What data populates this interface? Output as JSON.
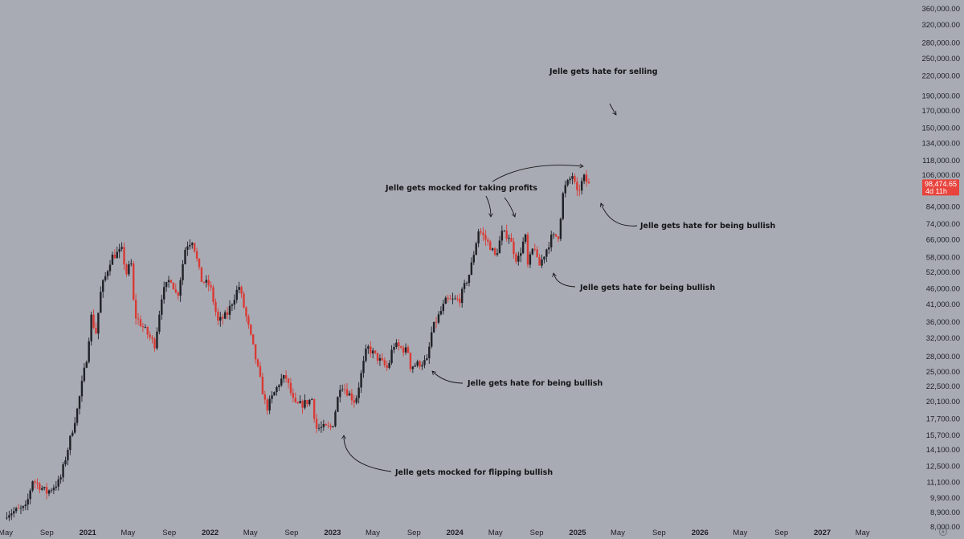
{
  "chart_data": {
    "type": "candlestick",
    "y_scale": "log",
    "ylim": [
      7900,
      370000
    ],
    "xlim": [
      "2020-05-01",
      "2027-07-15"
    ],
    "y_ticks": [
      "360,000.00",
      "320,000.00",
      "280,000.00",
      "250,000.00",
      "220,000.00",
      "190,000.00",
      "170,000.00",
      "150,000.00",
      "134,000.00",
      "118,000.00",
      "106,000.00",
      "84,000.00",
      "74,000.00",
      "66,000.00",
      "58,000.00",
      "52,000.00",
      "46,000.00",
      "41,000.00",
      "36,000.00",
      "32,000.00",
      "28,000.00",
      "25,000.00",
      "22,500.00",
      "20,100.00",
      "17,700.00",
      "15,700.00",
      "14,100.00",
      "12,500.00",
      "11,100.00",
      "9,900.00",
      "8,900.00",
      "8,000.00"
    ],
    "x_ticks": [
      {
        "label": "May",
        "date": "2020-05-01",
        "bold": false
      },
      {
        "label": "Sep",
        "date": "2020-09-01",
        "bold": false
      },
      {
        "label": "2021",
        "date": "2021-01-01",
        "bold": true
      },
      {
        "label": "May",
        "date": "2021-05-01",
        "bold": false
      },
      {
        "label": "Sep",
        "date": "2021-09-01",
        "bold": false
      },
      {
        "label": "2022",
        "date": "2022-01-01",
        "bold": true
      },
      {
        "label": "May",
        "date": "2022-05-01",
        "bold": false
      },
      {
        "label": "Sep",
        "date": "2022-09-01",
        "bold": false
      },
      {
        "label": "2023",
        "date": "2023-01-01",
        "bold": true
      },
      {
        "label": "May",
        "date": "2023-05-01",
        "bold": false
      },
      {
        "label": "Sep",
        "date": "2023-09-01",
        "bold": false
      },
      {
        "label": "2024",
        "date": "2024-01-01",
        "bold": true
      },
      {
        "label": "May",
        "date": "2024-05-01",
        "bold": false
      },
      {
        "label": "Sep",
        "date": "2024-09-01",
        "bold": false
      },
      {
        "label": "2025",
        "date": "2025-01-01",
        "bold": true
      },
      {
        "label": "May",
        "date": "2025-05-01",
        "bold": false
      },
      {
        "label": "Sep",
        "date": "2025-09-01",
        "bold": false
      },
      {
        "label": "2026",
        "date": "2026-01-01",
        "bold": true
      },
      {
        "label": "May",
        "date": "2026-05-01",
        "bold": false
      },
      {
        "label": "Sep",
        "date": "2026-09-01",
        "bold": false
      },
      {
        "label": "2027",
        "date": "2027-01-01",
        "bold": true
      },
      {
        "label": "May",
        "date": "2027-05-01",
        "bold": false
      }
    ],
    "price_anchors": [
      {
        "date": "2020-05-01",
        "close": 8800
      },
      {
        "date": "2020-07-01",
        "close": 9200
      },
      {
        "date": "2020-07-20",
        "close": 11300
      },
      {
        "date": "2020-09-01",
        "close": 10300
      },
      {
        "date": "2020-10-10",
        "close": 11200
      },
      {
        "date": "2020-11-01",
        "close": 14000
      },
      {
        "date": "2020-12-01",
        "close": 19000
      },
      {
        "date": "2021-01-01",
        "close": 29000
      },
      {
        "date": "2021-01-10",
        "close": 38000
      },
      {
        "date": "2021-01-25",
        "close": 33000
      },
      {
        "date": "2021-02-10",
        "close": 46000
      },
      {
        "date": "2021-02-22",
        "close": 50000
      },
      {
        "date": "2021-03-12",
        "close": 58000
      },
      {
        "date": "2021-04-14",
        "close": 61000
      },
      {
        "date": "2021-04-25",
        "close": 51000
      },
      {
        "date": "2021-05-10",
        "close": 56000
      },
      {
        "date": "2021-05-20",
        "close": 38000
      },
      {
        "date": "2021-06-20",
        "close": 34000
      },
      {
        "date": "2021-07-20",
        "close": 30500
      },
      {
        "date": "2021-08-10",
        "close": 44000
      },
      {
        "date": "2021-09-05",
        "close": 50000
      },
      {
        "date": "2021-09-25",
        "close": 43000
      },
      {
        "date": "2021-10-20",
        "close": 63000
      },
      {
        "date": "2021-11-10",
        "close": 66000
      },
      {
        "date": "2021-12-05",
        "close": 49000
      },
      {
        "date": "2022-01-01",
        "close": 47000
      },
      {
        "date": "2022-01-24",
        "close": 36000
      },
      {
        "date": "2022-02-20",
        "close": 38000
      },
      {
        "date": "2022-03-28",
        "close": 47000
      },
      {
        "date": "2022-05-09",
        "close": 30000
      },
      {
        "date": "2022-06-18",
        "close": 19000
      },
      {
        "date": "2022-07-30",
        "close": 23500
      },
      {
        "date": "2022-08-15",
        "close": 24000
      },
      {
        "date": "2022-09-10",
        "close": 19500
      },
      {
        "date": "2022-10-05",
        "close": 19700
      },
      {
        "date": "2022-11-02",
        "close": 20500
      },
      {
        "date": "2022-11-12",
        "close": 16500
      },
      {
        "date": "2022-12-31",
        "close": 16600
      },
      {
        "date": "2023-01-25",
        "close": 23000
      },
      {
        "date": "2023-03-10",
        "close": 20000
      },
      {
        "date": "2023-04-14",
        "close": 30000
      },
      {
        "date": "2023-06-15",
        "close": 25500
      },
      {
        "date": "2023-07-01",
        "close": 30500
      },
      {
        "date": "2023-08-15",
        "close": 29000
      },
      {
        "date": "2023-08-20",
        "close": 26000
      },
      {
        "date": "2023-10-10",
        "close": 27000
      },
      {
        "date": "2023-10-25",
        "close": 34000
      },
      {
        "date": "2023-12-05",
        "close": 42000
      },
      {
        "date": "2024-01-15",
        "close": 42500
      },
      {
        "date": "2024-02-15",
        "close": 52000
      },
      {
        "date": "2024-03-12",
        "close": 71000
      },
      {
        "date": "2024-04-15",
        "close": 63000
      },
      {
        "date": "2024-05-01",
        "close": 58000
      },
      {
        "date": "2024-05-20",
        "close": 69000
      },
      {
        "date": "2024-06-10",
        "close": 68000
      },
      {
        "date": "2024-07-05",
        "close": 56000
      },
      {
        "date": "2024-07-29",
        "close": 68000
      },
      {
        "date": "2024-08-05",
        "close": 54000
      },
      {
        "date": "2024-08-25",
        "close": 64000
      },
      {
        "date": "2024-09-06",
        "close": 53500
      },
      {
        "date": "2024-10-15",
        "close": 67000
      },
      {
        "date": "2024-11-05",
        "close": 68000
      },
      {
        "date": "2024-11-20",
        "close": 95000
      },
      {
        "date": "2024-12-17",
        "close": 106000
      },
      {
        "date": "2024-12-30",
        "close": 92000
      },
      {
        "date": "2025-01-20",
        "close": 104000
      },
      {
        "date": "2025-02-03",
        "close": 98474.65
      }
    ],
    "current_price": {
      "value": 98474.65,
      "label": "98,474.65",
      "countdown": "4d 11h"
    },
    "annotations": [
      {
        "text": "Jelle gets hate for selling"
      },
      {
        "text": "Jelle gets mocked for taking profits"
      },
      {
        "text": "Jelle gets hate for being bullish"
      },
      {
        "text": "Jelle gets hate for being bullish"
      },
      {
        "text": "Jelle gets hate for being bullish"
      },
      {
        "text": "Jelle gets mocked for flipping bullish"
      }
    ],
    "colors": {
      "background": "#a9abb4",
      "up": "#1f2127",
      "down": "#d93a35",
      "text": "#1e1f24",
      "price_label_bg": "#e8433c"
    }
  }
}
